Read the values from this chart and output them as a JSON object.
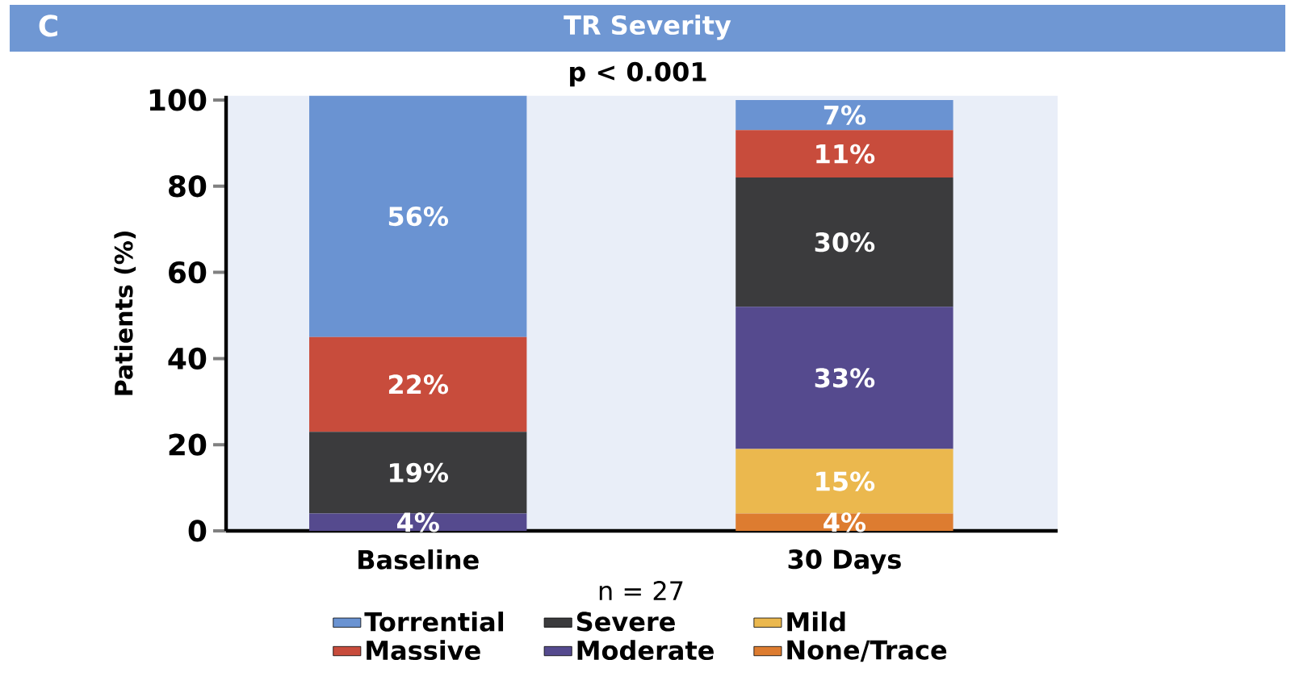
{
  "chart_data": {
    "type": "bar",
    "stacked": true,
    "title": "TR Severity",
    "subtitle": "p < 0.001",
    "ylabel": "Patients (%)",
    "annotations": [
      "C",
      "n = 27"
    ],
    "categories": [
      "Baseline",
      "30 Days"
    ],
    "series": [
      {
        "name": "None/Trace",
        "color": "#dd7c30",
        "values": [
          0,
          4
        ],
        "value_labels": [
          null,
          "4%"
        ]
      },
      {
        "name": "Mild",
        "color": "#ebb84e",
        "values": [
          0,
          15
        ],
        "value_labels": [
          null,
          "15%"
        ]
      },
      {
        "name": "Moderate",
        "color": "#554a8e",
        "values": [
          4,
          33
        ],
        "value_labels": [
          "4%",
          "33%"
        ]
      },
      {
        "name": "Severe",
        "color": "#3b3b3d",
        "values": [
          19,
          30
        ],
        "value_labels": [
          "19%",
          "30%"
        ]
      },
      {
        "name": "Massive",
        "color": "#c84c3c",
        "values": [
          22,
          11
        ],
        "value_labels": [
          "22%",
          "11%"
        ]
      },
      {
        "name": "Torrential",
        "color": "#6a93d2",
        "values": [
          56,
          7
        ],
        "value_labels": [
          "56%",
          "7%"
        ]
      }
    ],
    "ylim": [
      0,
      101
    ],
    "yticks": [
      0,
      20,
      40,
      60,
      80,
      100
    ],
    "legend": "bottom",
    "grid": false
  }
}
